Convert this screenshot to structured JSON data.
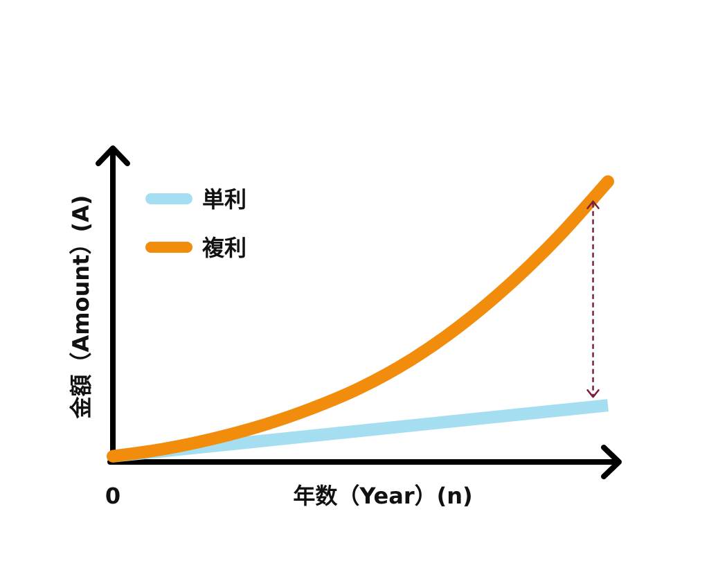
{
  "chart_data": {
    "type": "line",
    "xlabel": "年数（Year）(n)",
    "ylabel": "金額（Amount）(A)",
    "x_origin_label": "0",
    "xlim": [
      0,
      1
    ],
    "ylim": [
      0,
      1
    ],
    "grid": false,
    "legend_position": "top-left",
    "series": [
      {
        "name": "単利",
        "color": "#a4def0",
        "x": [
          0,
          1
        ],
        "y": [
          0.02,
          0.2
        ]
      },
      {
        "name": "複利",
        "color": "#f28c0c",
        "x": [
          0,
          0.1,
          0.2,
          0.3,
          0.4,
          0.5,
          0.6,
          0.7,
          0.8,
          0.9,
          1.0
        ],
        "y": [
          0.02,
          0.045,
          0.081,
          0.128,
          0.188,
          0.262,
          0.358,
          0.479,
          0.625,
          0.795,
          0.99
        ]
      }
    ],
    "annotation": {
      "type": "double-arrow",
      "x": 0.97,
      "y_from": 0.2,
      "y_to": 0.92,
      "color": "#7a1f3d"
    },
    "axis_color": "#000000"
  }
}
